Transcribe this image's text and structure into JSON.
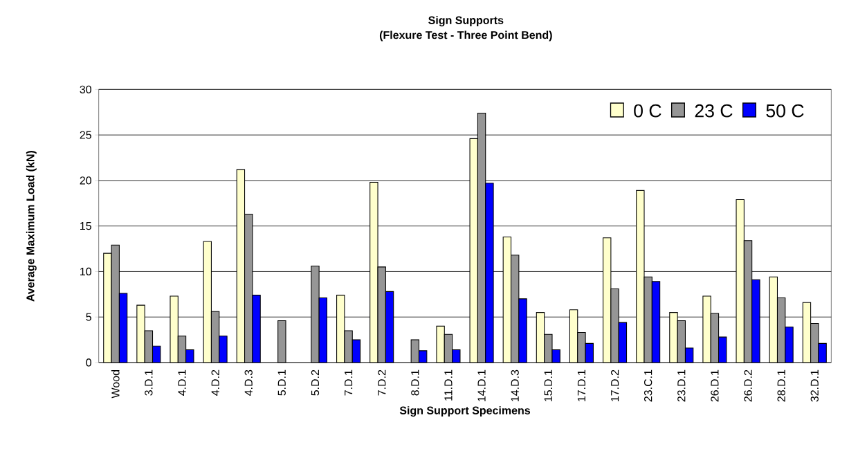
{
  "chart_data": {
    "type": "bar",
    "title": "Sign Supports",
    "subtitle": "(Flexure Test - Three Point Bend)",
    "xlabel": "Sign Support Specimens",
    "ylabel": "Average Maximum Load (kN)",
    "categories": [
      "Wood",
      "3.D.1",
      "4.D.1",
      "4.D.2",
      "4.D.3",
      "5.D.1",
      "5.D.2",
      "7.D.1",
      "7.D.2",
      "8.D.1",
      "11.D.1",
      "14.D.1",
      "14.D.3",
      "15.D.1",
      "17.D.1",
      "17.D.2",
      "23.C.1",
      "23.D.1",
      "26.D.1",
      "26.D.2",
      "28.D.1",
      "32.D.1"
    ],
    "series": [
      {
        "name": "0 C",
        "color": "#ffffcc",
        "values": [
          12.0,
          6.3,
          7.3,
          13.3,
          21.2,
          null,
          null,
          7.4,
          19.8,
          null,
          4.0,
          24.6,
          13.8,
          5.5,
          5.8,
          13.7,
          18.9,
          5.5,
          7.3,
          17.9,
          9.4,
          6.6
        ]
      },
      {
        "name": "23 C",
        "color": "#969696",
        "values": [
          12.9,
          3.5,
          2.9,
          5.6,
          16.3,
          4.6,
          10.6,
          3.5,
          10.5,
          2.5,
          3.1,
          27.4,
          11.8,
          3.1,
          3.3,
          8.1,
          9.4,
          4.6,
          5.4,
          13.4,
          7.1,
          4.3
        ]
      },
      {
        "name": "50 C",
        "color": "#0000ff",
        "values": [
          7.6,
          1.8,
          1.4,
          2.9,
          7.4,
          null,
          7.1,
          2.5,
          7.8,
          1.3,
          1.4,
          19.7,
          7.0,
          1.4,
          2.1,
          4.4,
          8.9,
          1.6,
          2.8,
          9.1,
          3.9,
          2.1
        ]
      }
    ],
    "ylim": [
      0,
      30
    ],
    "yticks": [
      0,
      5,
      10,
      15,
      20,
      25,
      30
    ],
    "grid": "y",
    "legend": "top right"
  }
}
